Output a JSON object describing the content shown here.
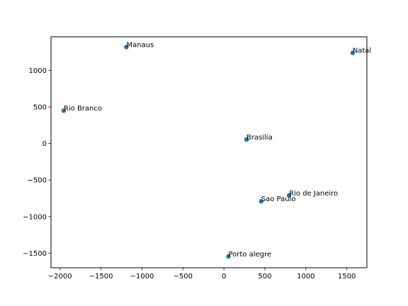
{
  "chart_data": {
    "type": "scatter",
    "title": "",
    "xlabel": "",
    "ylabel": "",
    "xlim": [
      -2110,
      1745
    ],
    "ylim": [
      -1700,
      1460
    ],
    "xticks": [
      -2000,
      -1500,
      -1000,
      -500,
      0,
      500,
      1000,
      1500
    ],
    "xtick_labels": [
      "−2000",
      "−1500",
      "−1000",
      "−500",
      "0",
      "500",
      "1000",
      "1500"
    ],
    "yticks": [
      -1500,
      -1000,
      -500,
      0,
      500,
      1000
    ],
    "ytick_labels": [
      "−1500",
      "−1000",
      "−500",
      "0",
      "500",
      "1000"
    ],
    "grid": false,
    "marker_color": "#1f77b4",
    "points": [
      {
        "label": "Manaus",
        "x": -1190,
        "y": 1320
      },
      {
        "label": "Natal",
        "x": 1570,
        "y": 1240
      },
      {
        "label": "Rio Branco",
        "x": -1955,
        "y": 450
      },
      {
        "label": "Brasilia",
        "x": 275,
        "y": 55
      },
      {
        "label": "Rio de Janeiro",
        "x": 795,
        "y": 710,
        "y_sign": -1
      },
      {
        "label": "Sao Paulo",
        "x": 455,
        "y": -790
      },
      {
        "label": "Porto alegre",
        "x": 55,
        "y": -1545
      }
    ]
  }
}
